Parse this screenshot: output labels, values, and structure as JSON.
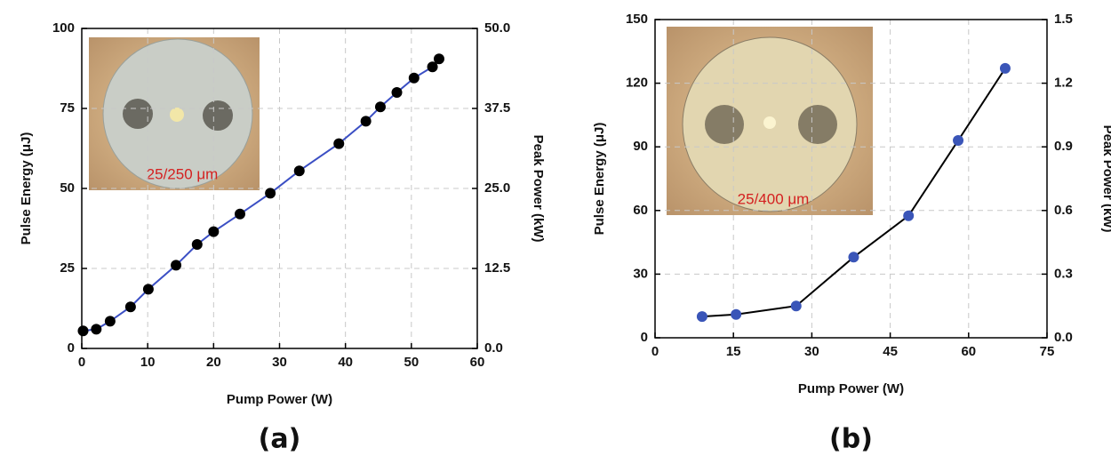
{
  "chart_data": [
    {
      "type": "line",
      "caption": "(a)",
      "inset_label": "25/250 μm",
      "x_label": "Pump Power (W)",
      "y_label": "Pulse Energy (μJ)",
      "y2_label": "Peak Power (kW)",
      "xlim": [
        0,
        60
      ],
      "xticks": [
        0,
        10,
        20,
        30,
        40,
        50,
        60
      ],
      "ylim": [
        0,
        100
      ],
      "yticks": [
        0,
        25,
        50,
        75,
        100
      ],
      "y2lim": [
        0,
        50
      ],
      "y2ticks": [
        {
          "value": 0,
          "label": "0.0"
        },
        {
          "value": 12.5,
          "label": "12.5"
        },
        {
          "value": 25,
          "label": "25.0"
        },
        {
          "value": 37.5,
          "label": "37.5"
        },
        {
          "value": 50,
          "label": "50.0"
        }
      ],
      "grid": true,
      "line_color": "#3b4fc4",
      "marker_color": "#000000",
      "x": [
        0.2,
        2.2,
        4.3,
        7.4,
        10.1,
        14.3,
        17.5,
        20,
        24,
        28.6,
        33,
        39,
        43.1,
        45.3,
        47.8,
        50.4,
        53.2,
        54.2
      ],
      "values": [
        5.5,
        6,
        8.5,
        13,
        18.5,
        26,
        32.5,
        36.5,
        42,
        48.5,
        55.5,
        64,
        71,
        75.5,
        80,
        84.5,
        88,
        90.5
      ]
    },
    {
      "type": "line",
      "caption": "(b)",
      "inset_label": "25/400 μm",
      "x_label": "Pump Power (W)",
      "y_label": "Pulse Energy (μJ)",
      "y2_label": "Peak Power (kW)",
      "xlim": [
        0,
        75
      ],
      "xticks": [
        0,
        15,
        30,
        45,
        60,
        75
      ],
      "ylim": [
        0,
        150
      ],
      "yticks": [
        0,
        30,
        60,
        90,
        120,
        150
      ],
      "y2lim": [
        0,
        1.5
      ],
      "y2ticks": [
        {
          "value": 0,
          "label": "0.0"
        },
        {
          "value": 0.3,
          "label": "0.3"
        },
        {
          "value": 0.6,
          "label": "0.6"
        },
        {
          "value": 0.9,
          "label": "0.9"
        },
        {
          "value": 1.2,
          "label": "1.2"
        },
        {
          "value": 1.5,
          "label": "1.5"
        }
      ],
      "grid": true,
      "line_color": "#000000",
      "marker_color": "#3a55b8",
      "x": [
        9,
        15.5,
        27,
        38,
        48.5,
        58,
        67
      ],
      "values": [
        10,
        11,
        15,
        38,
        57.5,
        93,
        127
      ]
    }
  ]
}
